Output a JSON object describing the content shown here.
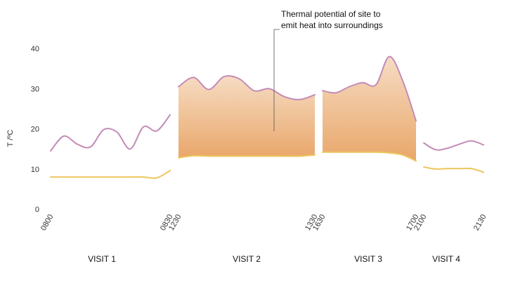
{
  "chart_data": {
    "type": "area",
    "title": "",
    "xlabel": "",
    "ylabel": "T /ºC",
    "ylim": [
      0,
      45
    ],
    "y_ticks": [
      0,
      10,
      20,
      30,
      40
    ],
    "grid": false,
    "legend": "none",
    "annotation": {
      "lines": [
        "Thermal potential of site to",
        "emit heat into surroundings"
      ]
    },
    "colors": {
      "upper_line": "#c48bb8",
      "lower_line": "#edc65c",
      "fill_top": "#f6dcc3",
      "fill_bottom": "#e9a76a"
    },
    "segments": [
      {
        "label": "VISIT 1",
        "shaded": false,
        "start_label": "0800",
        "end_label": "0830",
        "upper": [
          14.5,
          18.2,
          16.2,
          15.5,
          19.8,
          19.2,
          15.0,
          20.5,
          19.5,
          23.5
        ],
        "lower": [
          8.0,
          8.0,
          8.0,
          8.0,
          8.0,
          8.0,
          8.0,
          8.0,
          7.8,
          9.6
        ]
      },
      {
        "label": "VISIT 2",
        "shaded": true,
        "start_label": "1230",
        "end_label": "1330",
        "upper": [
          30.5,
          32.8,
          29.8,
          33.0,
          32.5,
          29.5,
          30.0,
          28.0,
          27.3,
          28.5
        ],
        "lower": [
          12.8,
          13.3,
          13.2,
          13.2,
          13.2,
          13.2,
          13.2,
          13.2,
          13.2,
          13.5
        ]
      },
      {
        "label": "VISIT 3",
        "shaded": true,
        "start_label": "1630",
        "end_label": "1700",
        "upper": [
          29.5,
          29.0,
          30.5,
          31.5,
          31.0,
          38.0,
          32.0,
          22.0
        ],
        "lower": [
          14.2,
          14.2,
          14.2,
          14.2,
          14.2,
          14.0,
          13.5,
          12.0
        ]
      },
      {
        "label": "VISIT 4",
        "shaded": false,
        "start_label": "2100",
        "end_label": "2130",
        "upper": [
          16.5,
          14.8,
          15.2,
          16.2,
          17.0,
          16.0
        ],
        "lower": [
          10.5,
          10.0,
          10.1,
          10.1,
          10.1,
          9.2
        ]
      }
    ]
  }
}
